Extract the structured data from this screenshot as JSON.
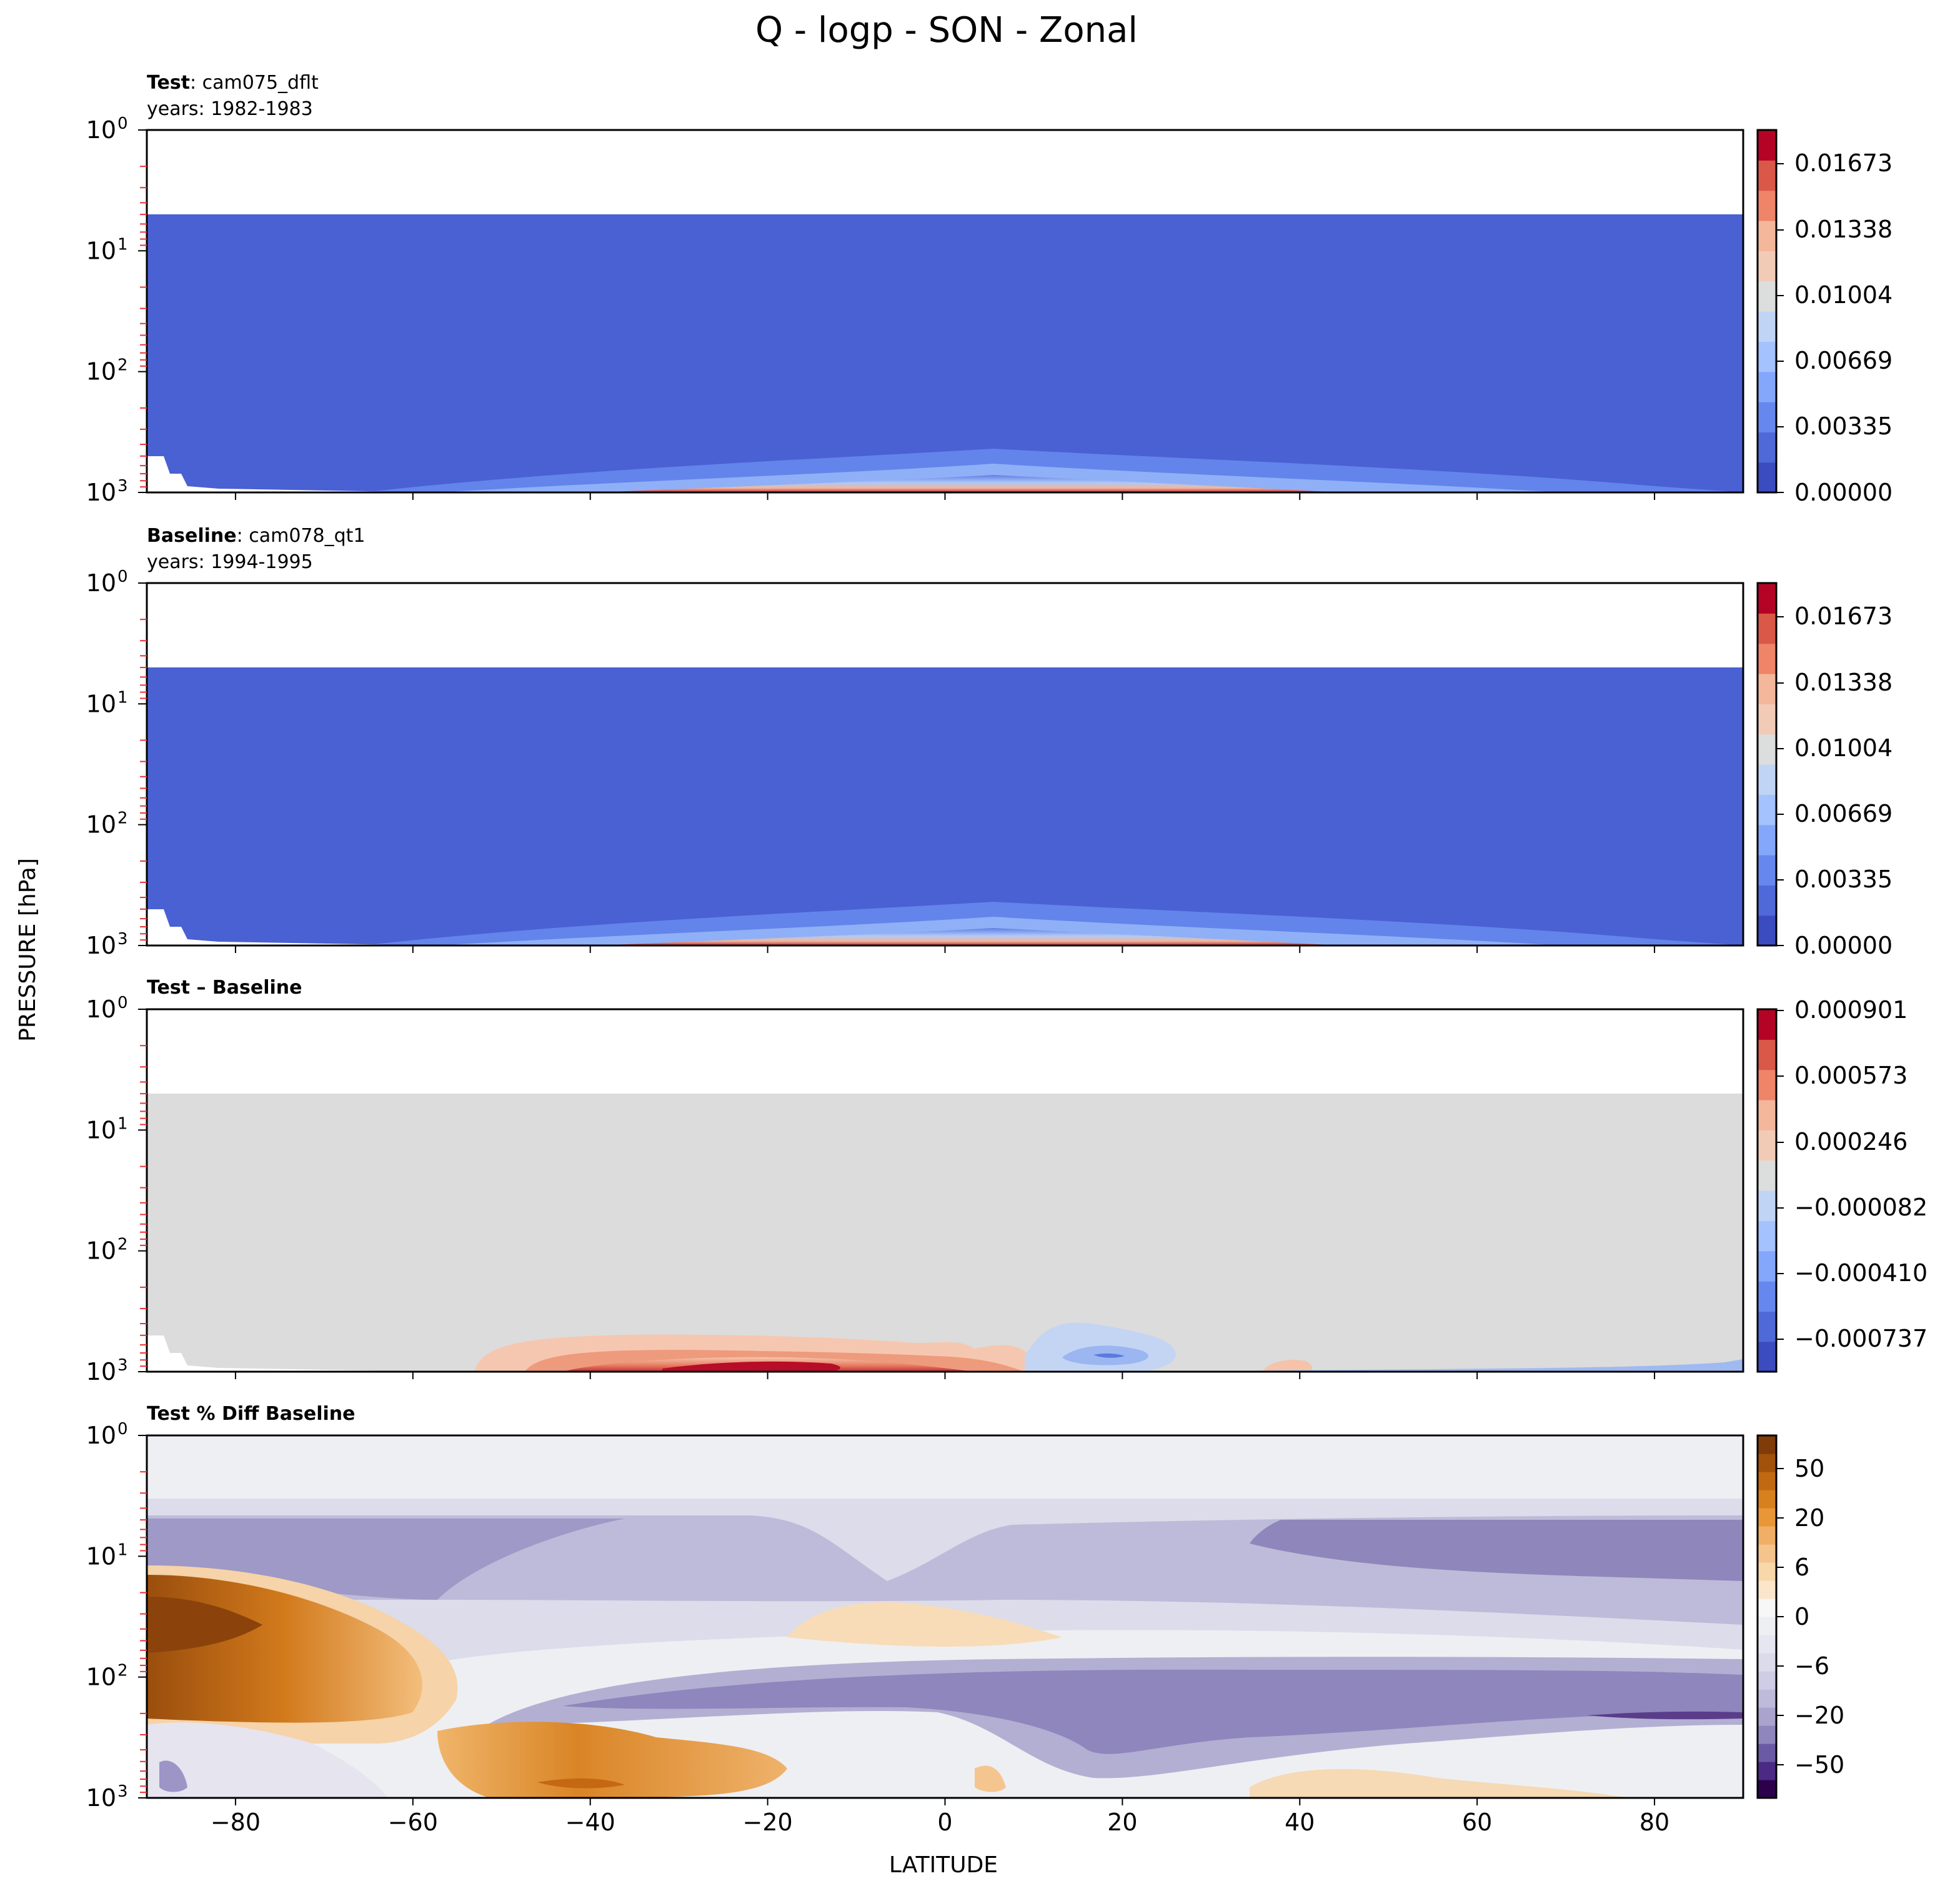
{
  "figure": {
    "title": "Q - logp - SON - Zonal",
    "shared_ylabel": "PRESSURE [hPa]",
    "shared_xlabel": "LATITUDE"
  },
  "chart_data": [
    {
      "type": "heatmap",
      "subplot_title_bold": "Test",
      "subplot_title_rest": ": cam075_dflt",
      "subplot_subtitle": "years: 1982-1983",
      "x_ticks": [
        -80,
        -60,
        -40,
        -20,
        0,
        20,
        40,
        60,
        80
      ],
      "x_tick_labels": [
        "",
        "",
        "",
        "",
        "",
        "",
        "",
        "",
        ""
      ],
      "xlim": [
        -90,
        90
      ],
      "y_scale": "log",
      "y_inverted": true,
      "ylim": [
        1000,
        1
      ],
      "y_tick_labels": [
        {
          "base": "10",
          "exp": "0",
          "value": 1
        },
        {
          "base": "10",
          "exp": "1",
          "value": 10
        },
        {
          "base": "10",
          "exp": "2",
          "value": 100
        },
        {
          "base": "10",
          "exp": "3",
          "value": 1000
        }
      ],
      "model_top_hPa": 4.8,
      "colormap": "coolwarm",
      "colorbar_ticks": [
        "0.01673",
        "0.01338",
        "0.01004",
        "0.00669",
        "0.00335",
        "0.00000"
      ],
      "colorbar_range": [
        0.0,
        0.0184
      ],
      "colorbar_levels": 11,
      "background_color": "#4a61d3",
      "surface_feature": "moist layer near 1000 hPa, peak near 8N"
    },
    {
      "type": "heatmap",
      "subplot_title_bold": "Baseline",
      "subplot_title_rest": ": cam078_qt1",
      "subplot_subtitle": "years: 1994-1995",
      "x_ticks": [
        -80,
        -60,
        -40,
        -20,
        0,
        20,
        40,
        60,
        80
      ],
      "x_tick_labels": [
        "",
        "",
        "",
        "",
        "",
        "",
        "",
        "",
        ""
      ],
      "xlim": [
        -90,
        90
      ],
      "y_scale": "log",
      "y_inverted": true,
      "ylim": [
        1000,
        1
      ],
      "y_tick_labels": [
        {
          "base": "10",
          "exp": "0",
          "value": 1
        },
        {
          "base": "10",
          "exp": "1",
          "value": 10
        },
        {
          "base": "10",
          "exp": "2",
          "value": 100
        },
        {
          "base": "10",
          "exp": "3",
          "value": 1000
        }
      ],
      "model_top_hPa": 4.8,
      "colormap": "coolwarm",
      "colorbar_ticks": [
        "0.01673",
        "0.01338",
        "0.01004",
        "0.00669",
        "0.00335",
        "0.00000"
      ],
      "colorbar_range": [
        0.0,
        0.0184
      ],
      "colorbar_levels": 11,
      "background_color": "#4a61d3",
      "surface_feature": "moist layer near 1000 hPa, peak near 8N"
    },
    {
      "type": "heatmap",
      "subplot_title_bold": "Test – Baseline",
      "subplot_title_rest": "",
      "subplot_subtitle": "",
      "x_ticks": [
        -80,
        -60,
        -40,
        -20,
        0,
        20,
        40,
        60,
        80
      ],
      "x_tick_labels": [
        "",
        "",
        "",
        "",
        "",
        "",
        "",
        "",
        ""
      ],
      "xlim": [
        -90,
        90
      ],
      "y_scale": "log",
      "y_inverted": true,
      "ylim": [
        1000,
        1
      ],
      "y_tick_labels": [
        {
          "base": "10",
          "exp": "0",
          "value": 1
        },
        {
          "base": "10",
          "exp": "1",
          "value": 10
        },
        {
          "base": "10",
          "exp": "2",
          "value": 100
        },
        {
          "base": "10",
          "exp": "3",
          "value": 1000
        }
      ],
      "model_top_hPa": 4.8,
      "colormap": "coolwarm",
      "colorbar_ticks": [
        "0.000901",
        "0.000573",
        "0.000246",
        "−0.000082",
        "−0.000410",
        "−0.000737"
      ],
      "colorbar_range": [
        -0.0009,
        0.0009
      ],
      "colorbar_levels": 11,
      "background_color": "#dcdcdc",
      "positive_region_lat": [
        -50,
        10
      ],
      "negative_region_lat": [
        12,
        28
      ]
    },
    {
      "type": "heatmap",
      "subplot_title_bold": "Test % Diff Baseline",
      "subplot_title_rest": "",
      "subplot_subtitle": "",
      "x_ticks": [
        -80,
        -60,
        -40,
        -20,
        0,
        20,
        40,
        60,
        80
      ],
      "x_tick_labels": [
        "−80",
        "−60",
        "−40",
        "−20",
        "0",
        "20",
        "40",
        "60",
        "80"
      ],
      "xlim": [
        -90,
        90
      ],
      "y_scale": "log",
      "y_inverted": true,
      "ylim": [
        1000,
        1
      ],
      "y_tick_labels": [
        {
          "base": "10",
          "exp": "0",
          "value": 1
        },
        {
          "base": "10",
          "exp": "1",
          "value": 10
        },
        {
          "base": "10",
          "exp": "2",
          "value": 100
        },
        {
          "base": "10",
          "exp": "3",
          "value": 1000
        }
      ],
      "colormap": "PuOr_r",
      "colorbar_ticks": [
        "50",
        "20",
        "6",
        "0",
        "−6",
        "−20",
        "−50"
      ],
      "colorbar_boundaries": [
        -100,
        -50,
        -40,
        -30,
        -20,
        -15,
        -10,
        -8,
        -6,
        -4,
        -2,
        0,
        2,
        4,
        6,
        8,
        10,
        15,
        20,
        30,
        40,
        50,
        100
      ],
      "background_color": "#eeeff3"
    }
  ]
}
